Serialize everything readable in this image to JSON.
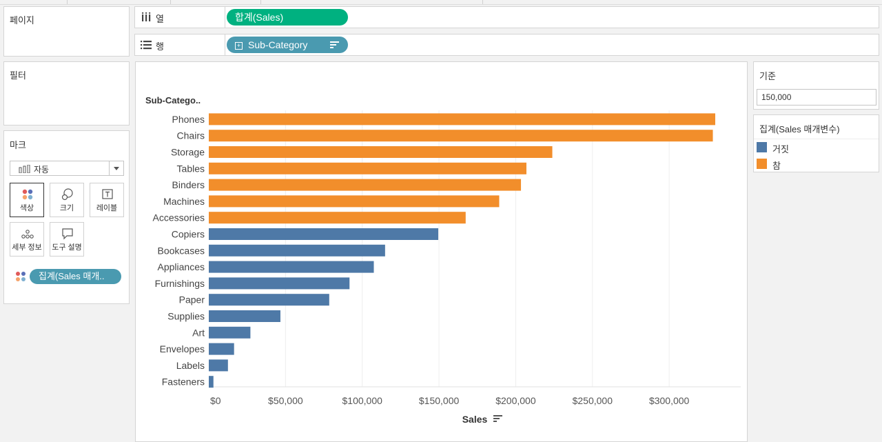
{
  "sidebar": {
    "pages_title": "페이지",
    "filters_title": "필터",
    "marks": {
      "title": "마크",
      "mark_type": "자동",
      "buttons": [
        {
          "label": "색상",
          "icon": "color-icon"
        },
        {
          "label": "크기",
          "icon": "size-icon"
        },
        {
          "label": "레이블",
          "icon": "label-icon"
        },
        {
          "label": "세부 정보",
          "icon": "detail-icon"
        },
        {
          "label": "도구 설명",
          "icon": "tooltip-icon"
        }
      ],
      "color_pill": "집계(Sales 매개.."
    }
  },
  "shelves": {
    "columns": {
      "label": "열",
      "pill": "합계(Sales)"
    },
    "rows": {
      "label": "행",
      "pill": "Sub-Category"
    }
  },
  "parameter": {
    "title": "기준",
    "value": "150,000"
  },
  "legend": {
    "title": "집계(Sales 매개변수)",
    "items": [
      {
        "label": "거짓",
        "color": "#4e79a7"
      },
      {
        "label": "참",
        "color": "#f28e2b"
      }
    ]
  },
  "chart_data": {
    "type": "bar",
    "orientation": "horizontal",
    "category_header": "Sub-Catego..",
    "xlabel": "Sales",
    "xlim": [
      0,
      340000
    ],
    "threshold": 150000,
    "x_ticks": [
      0,
      50000,
      100000,
      150000,
      200000,
      250000,
      300000
    ],
    "x_tick_labels": [
      "$0",
      "$50,000",
      "$100,000",
      "$150,000",
      "$200,000",
      "$250,000",
      "$300,000"
    ],
    "colors": {
      "above": "#f28e2b",
      "below": "#4e79a7"
    },
    "categories": [
      "Phones",
      "Chairs",
      "Storage",
      "Tables",
      "Binders",
      "Machines",
      "Accessories",
      "Copiers",
      "Bookcases",
      "Appliances",
      "Furnishings",
      "Paper",
      "Supplies",
      "Art",
      "Envelopes",
      "Labels",
      "Fasteners"
    ],
    "values": [
      330007,
      328449,
      223844,
      206966,
      203413,
      189239,
      167380,
      149528,
      114880,
      107532,
      91705,
      78479,
      46674,
      27119,
      16476,
      12486,
      3024
    ]
  }
}
